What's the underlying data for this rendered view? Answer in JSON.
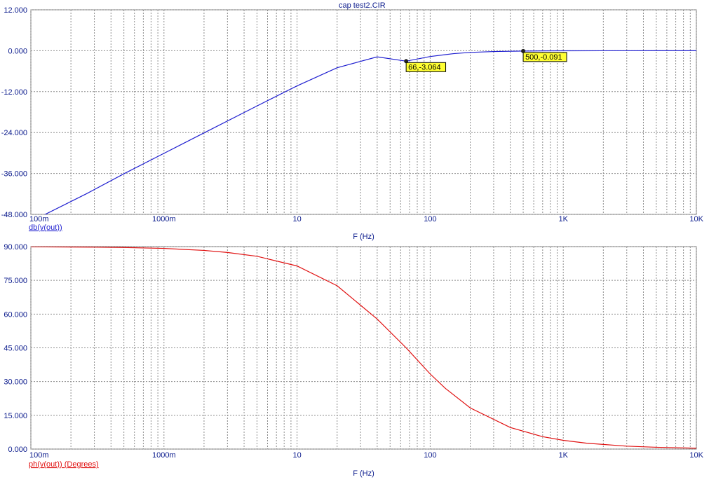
{
  "window_title": "cap test2.CIR",
  "colors": {
    "magnitude": "#1f1fd0",
    "phase": "#e01010",
    "axis_text": "#0a1a8c",
    "grid": "#8c8c8c",
    "label_bg": "#ffff33"
  },
  "chart_data": [
    {
      "type": "line",
      "xscale": "log",
      "xlim": [
        0.1,
        10000
      ],
      "ylim": [
        -48,
        12
      ],
      "yticks": [
        "12.000",
        "0.000",
        "-12.000",
        "-24.000",
        "-36.000",
        "-48.000"
      ],
      "ytick_values": [
        12,
        0,
        -12,
        -24,
        -36,
        -48
      ],
      "xticks": [
        "100m",
        "1000m",
        "10",
        "100",
        "1K",
        "10K"
      ],
      "xtick_values": [
        0.1,
        1,
        10,
        100,
        1000,
        10000
      ],
      "xlabel": "F (Hz)",
      "ylabel": "db(v(out))",
      "grid": true,
      "series": [
        {
          "name": "db(v(out))",
          "color": "#1f1fd0",
          "x": [
            0.1,
            0.26,
            0.5,
            1,
            2,
            5,
            10,
            20,
            40,
            66,
            100,
            150,
            200,
            300,
            500,
            700,
            1000,
            2000,
            5000,
            10000
          ],
          "y": [
            -50.1,
            -42.0,
            -36.1,
            -30.1,
            -24.1,
            -16.2,
            -10.3,
            -5.0,
            -1.8,
            -3.064,
            -1.7,
            -0.85,
            -0.5,
            -0.24,
            -0.091,
            -0.05,
            -0.025,
            -0.006,
            -0.001,
            0.0
          ]
        }
      ],
      "markers": [
        {
          "x": 66,
          "y": -3.064,
          "label": "66,-3.064"
        },
        {
          "x": 500,
          "y": -0.091,
          "label": "500,-0.091"
        }
      ]
    },
    {
      "type": "line",
      "xscale": "log",
      "xlim": [
        0.1,
        10000
      ],
      "ylim": [
        0,
        90
      ],
      "yticks": [
        "90.000",
        "75.000",
        "60.000",
        "45.000",
        "30.000",
        "15.000",
        "0.000"
      ],
      "ytick_values": [
        90,
        75,
        60,
        45,
        30,
        15,
        0
      ],
      "xticks": [
        "100m",
        "1000m",
        "10",
        "100",
        "1K",
        "10K"
      ],
      "xtick_values": [
        0.1,
        1,
        10,
        100,
        1000,
        10000
      ],
      "xlabel": "F (Hz)",
      "ylabel": "ph(v(out)) (Degrees)",
      "grid": true,
      "series": [
        {
          "name": "ph(v(out)) (Degrees)",
          "color": "#e01010",
          "x": [
            0.1,
            0.3,
            0.5,
            1,
            2,
            3,
            5,
            10,
            20,
            40,
            66,
            100,
            130,
            200,
            400,
            700,
            1000,
            1500,
            3000,
            5000,
            10000
          ],
          "y": [
            89.9,
            89.75,
            89.6,
            89.2,
            88.3,
            87.4,
            85.7,
            81.4,
            72.6,
            57.8,
            45.0,
            33.4,
            27.0,
            18.3,
            9.6,
            5.5,
            3.9,
            2.6,
            1.3,
            0.8,
            0.4
          ]
        }
      ]
    }
  ]
}
